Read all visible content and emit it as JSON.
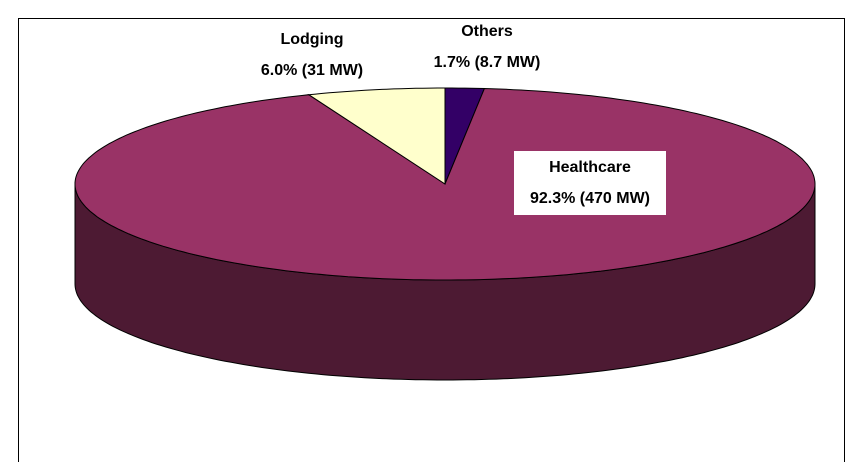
{
  "chart_data": {
    "type": "pie3d",
    "categories": [
      "Healthcare",
      "Lodging",
      "Others"
    ],
    "values": [
      92.3,
      6.0,
      1.7
    ],
    "value_labels": [
      "92.3% (470 MW)",
      "6.0% (31 MW)",
      "1.7% (8.7 MW)"
    ],
    "colors": [
      "#993366",
      "#ffffcc",
      "#330066"
    ]
  }
}
